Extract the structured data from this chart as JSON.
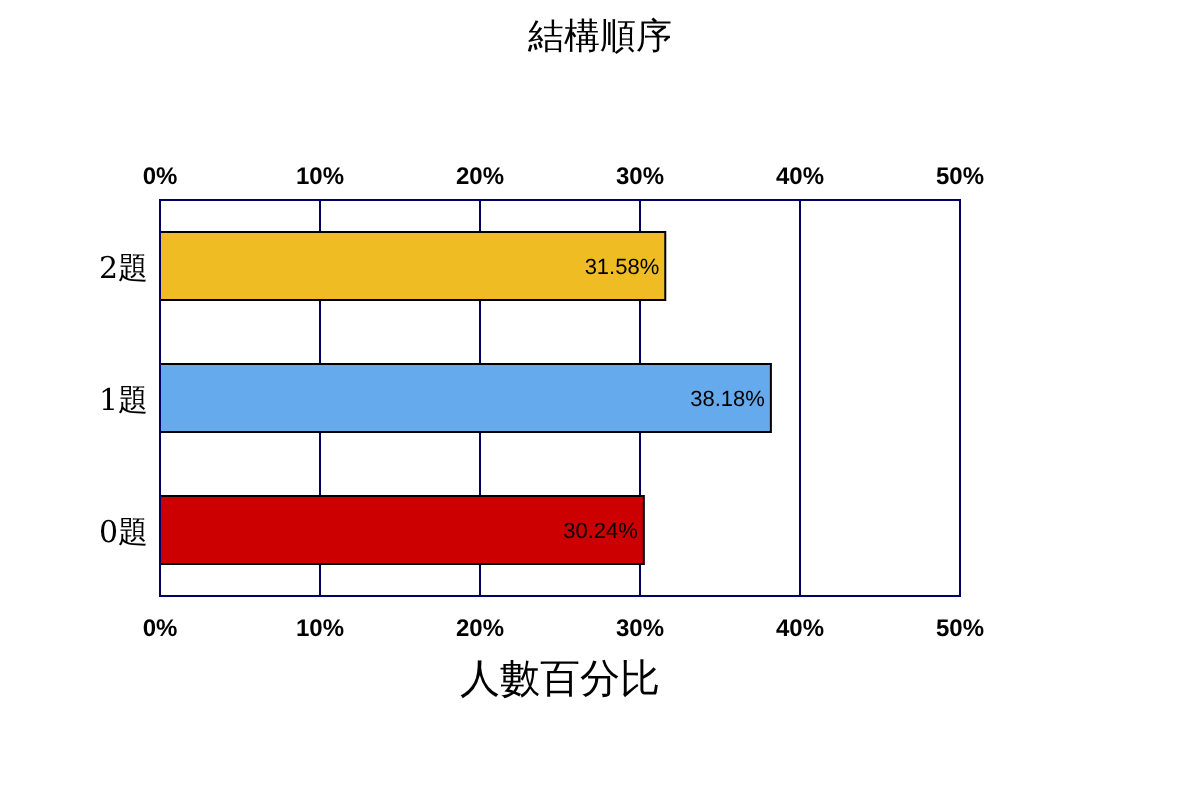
{
  "chart_data": {
    "type": "bar",
    "orientation": "horizontal",
    "title": "結構順序",
    "xlabel": "人數百分比",
    "categories": [
      "2題",
      "1題",
      "0題"
    ],
    "values": [
      31.58,
      38.18,
      30.24
    ],
    "colors": [
      "#f0bc24",
      "#64aaec",
      "#cc0000"
    ],
    "value_labels": [
      "31.58%",
      "38.18%",
      "30.24%"
    ],
    "xlim": [
      0,
      50
    ],
    "xticks": [
      {
        "value": 0,
        "label": "0%"
      },
      {
        "value": 10,
        "label": "10%"
      },
      {
        "value": 20,
        "label": "20%"
      },
      {
        "value": 30,
        "label": "30%"
      },
      {
        "value": 40,
        "label": "40%"
      },
      {
        "value": 50,
        "label": "50%"
      }
    ],
    "x2lim": [
      0,
      50
    ],
    "x2ticks": [
      {
        "value": 0,
        "label": "0%"
      },
      {
        "value": 10,
        "label": "10%"
      },
      {
        "value": 20,
        "label": "20%"
      },
      {
        "value": 30,
        "label": "30%"
      },
      {
        "value": 40,
        "label": "40%"
      },
      {
        "value": 50,
        "label": "50%"
      }
    ],
    "grid": "x"
  }
}
